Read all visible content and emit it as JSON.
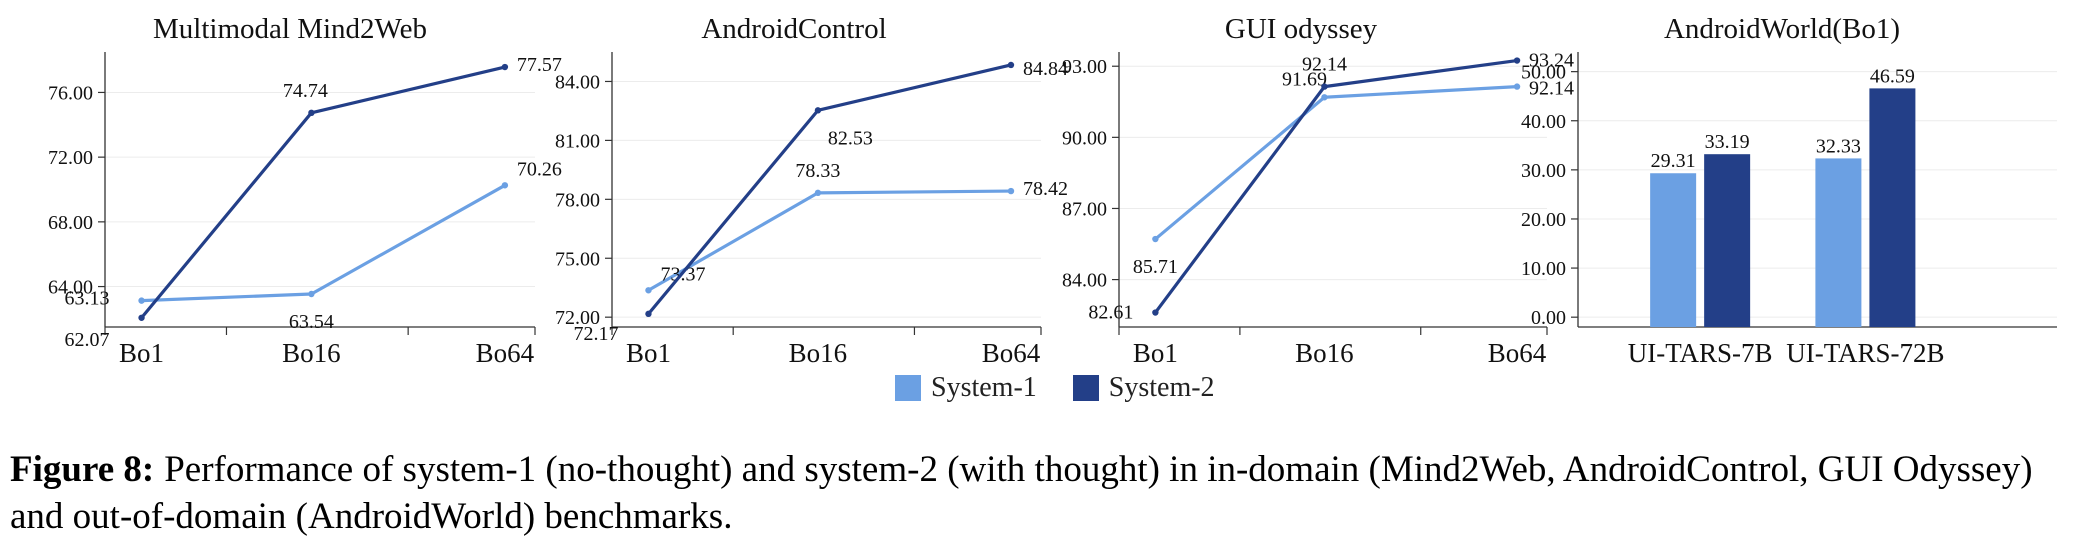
{
  "legend": {
    "system1_label": "System-1",
    "system2_label": "System-2"
  },
  "colors": {
    "system1": "#6ba0e3",
    "system2": "#233f88"
  },
  "caption": {
    "label": "Figure 8:",
    "text": "Performance of system-1 (no-thought) and system-2 (with thought) in in-domain (Mind2Web, AndroidControl, GUI Odyssey) and out-of-domain (AndroidWorld) benchmarks."
  },
  "chart_data": [
    {
      "type": "line",
      "title": "Multimodal Mind2Web",
      "categories": [
        "Bo1",
        "Bo16",
        "Bo64"
      ],
      "series": [
        {
          "name": "System-1",
          "values": [
            63.13,
            63.54,
            70.26
          ]
        },
        {
          "name": "System-2",
          "values": [
            62.07,
            74.74,
            77.57
          ]
        }
      ],
      "ylim": [
        61.5,
        78.5
      ],
      "yticks": [
        64,
        68,
        72,
        76
      ],
      "yticklabels": [
        "64.00",
        "68.00",
        "72.00",
        "76.00"
      ],
      "grid": true
    },
    {
      "type": "line",
      "title": "AndroidControl",
      "categories": [
        "Bo1",
        "Bo16",
        "Bo64"
      ],
      "series": [
        {
          "name": "System-1",
          "values": [
            73.37,
            78.33,
            78.42
          ]
        },
        {
          "name": "System-2",
          "values": [
            72.17,
            82.53,
            84.84
          ]
        }
      ],
      "ylim": [
        71.5,
        85.5
      ],
      "yticks": [
        72,
        75,
        78,
        81,
        84
      ],
      "yticklabels": [
        "72.00",
        "75.00",
        "78.00",
        "81.00",
        "84.00"
      ],
      "grid": true
    },
    {
      "type": "line",
      "title": "GUI odyssey",
      "categories": [
        "Bo1",
        "Bo16",
        "Bo64"
      ],
      "series": [
        {
          "name": "System-1",
          "values": [
            85.71,
            91.69,
            92.14
          ]
        },
        {
          "name": "System-2",
          "values": [
            82.61,
            92.14,
            93.24
          ]
        }
      ],
      "ylim": [
        82.0,
        93.6
      ],
      "yticks": [
        84,
        87,
        90,
        93
      ],
      "yticklabels": [
        "84.00",
        "87.00",
        "90.00",
        "93.00"
      ],
      "grid": true
    },
    {
      "type": "bar",
      "title": "AndroidWorld(Bo1)",
      "categories": [
        "UI-TARS-7B",
        "UI-TARS-72B"
      ],
      "series": [
        {
          "name": "System-1",
          "values": [
            29.31,
            32.33
          ]
        },
        {
          "name": "System-2",
          "values": [
            33.19,
            46.59
          ]
        }
      ],
      "ylim": [
        -2,
        54
      ],
      "yticks": [
        0,
        10,
        20,
        30,
        40,
        50
      ],
      "yticklabels": [
        "0.00",
        "10.00",
        "20.00",
        "30.00",
        "40.00",
        "50.00"
      ],
      "grid": true
    }
  ]
}
